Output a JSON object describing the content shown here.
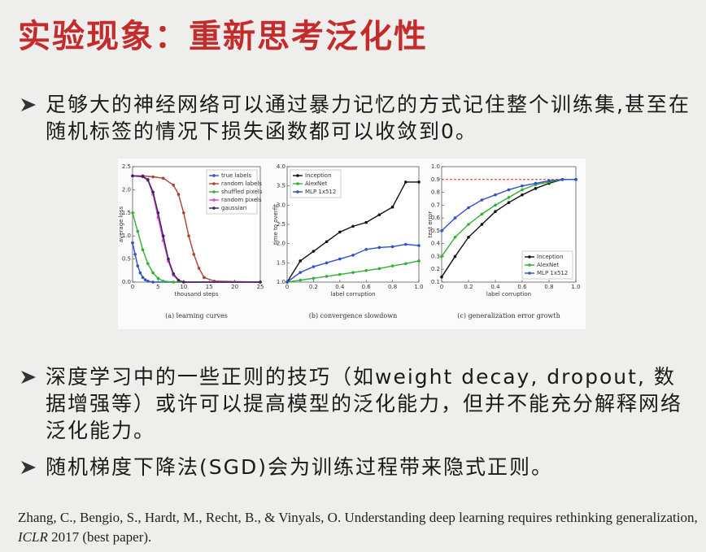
{
  "title": "实验现象：重新思考泛化性",
  "bullets": [
    "足够大的神经网络可以通过暴力记忆的方式记住整个训练集,甚至在随机标签的情况下损失函数都可以收敛到0。",
    "深度学习中的一些正则的技巧（如weight decay, dropout, 数据增强等）或许可以提高模型的泛化能力，但并不能充分解释网络泛化能力。",
    "随机梯度下降法(SGD)会为训练过程带来隐式正则。"
  ],
  "chart_data": [
    {
      "type": "line",
      "caption": "(a) learning curves",
      "x_label": "thousand steps",
      "y_label": "average loss",
      "xlim": [
        0,
        25
      ],
      "ylim": [
        0,
        2.5
      ],
      "xticks": [
        0,
        5,
        10,
        15,
        20,
        25
      ],
      "yticks": [
        {
          "value": 0,
          "label": "0.0"
        },
        0.5,
        {
          "value": 1,
          "label": "1.0"
        },
        1.5,
        {
          "value": 2,
          "label": "2.0"
        },
        2.5
      ],
      "legend": "upper right",
      "series": [
        {
          "name": "true labels",
          "color": "#3050c8",
          "x": [
            0,
            0.5,
            1,
            1.5,
            2,
            2.5,
            3,
            4,
            25
          ],
          "values": [
            0.85,
            0.6,
            0.35,
            0.2,
            0.1,
            0.05,
            0.02,
            0,
            0
          ]
        },
        {
          "name": "random labels",
          "color": "#b04030",
          "x": [
            0,
            2,
            4,
            6,
            8,
            9,
            10,
            11,
            12,
            13,
            14,
            16,
            25
          ],
          "values": [
            2.3,
            2.3,
            2.28,
            2.25,
            2.1,
            1.9,
            1.5,
            1.0,
            0.6,
            0.3,
            0.1,
            0.02,
            0
          ]
        },
        {
          "name": "shuffled pixels",
          "color": "#30b030",
          "x": [
            0,
            1,
            2,
            3,
            4,
            5,
            6,
            8,
            25
          ],
          "values": [
            1.5,
            1.1,
            0.7,
            0.4,
            0.2,
            0.08,
            0.02,
            0,
            0
          ]
        },
        {
          "name": "random pixels",
          "color": "#e040d0",
          "x": [
            0,
            2,
            3,
            4,
            5,
            6,
            7,
            8,
            9,
            10,
            25
          ],
          "values": [
            2.3,
            2.28,
            2.2,
            1.9,
            1.4,
            0.9,
            0.45,
            0.15,
            0.03,
            0,
            0
          ]
        },
        {
          "name": "gaussian",
          "color": "#402060",
          "x": [
            0,
            2,
            3,
            4,
            5,
            6,
            7,
            8,
            9,
            10,
            25
          ],
          "values": [
            2.3,
            2.29,
            2.22,
            1.95,
            1.5,
            1.0,
            0.5,
            0.18,
            0.04,
            0,
            0
          ]
        }
      ]
    },
    {
      "type": "line",
      "caption": "(b) convergence slowdown",
      "x_label": "label corruption",
      "y_label": "time to overfit",
      "xlim": [
        0,
        1
      ],
      "ylim": [
        1,
        4
      ],
      "xticks": [
        0,
        0.2,
        0.4,
        0.6,
        0.8,
        {
          "value": 1,
          "label": "1.0"
        }
      ],
      "yticks": [
        {
          "value": 1,
          "label": "1.0"
        },
        1.5,
        {
          "value": 2,
          "label": "2.0"
        },
        2.5,
        {
          "value": 3,
          "label": "3.0"
        },
        3.5,
        {
          "value": 4,
          "label": "4.0"
        }
      ],
      "legend": "upper left",
      "x": [
        0,
        0.1,
        0.2,
        0.3,
        0.4,
        0.5,
        0.6,
        0.7,
        0.8,
        0.9,
        1
      ],
      "series": [
        {
          "name": "Inception",
          "color": "#111111",
          "values": [
            1.0,
            1.55,
            1.8,
            2.05,
            2.3,
            2.45,
            2.55,
            2.75,
            2.95,
            3.6,
            3.6
          ]
        },
        {
          "name": "AlexNet",
          "color": "#30b030",
          "values": [
            1.0,
            1.05,
            1.1,
            1.15,
            1.2,
            1.25,
            1.3,
            1.35,
            1.42,
            1.48,
            1.55
          ]
        },
        {
          "name": "MLP 1x512",
          "color": "#3050c8",
          "values": [
            1.0,
            1.25,
            1.4,
            1.5,
            1.6,
            1.7,
            1.85,
            1.9,
            1.92,
            1.98,
            1.95
          ]
        }
      ]
    },
    {
      "type": "line",
      "caption": "(c) generalization error growth",
      "x_label": "label corruption",
      "y_label": "test error",
      "xlim": [
        0,
        1
      ],
      "ylim": [
        0.1,
        1
      ],
      "xticks": [
        0,
        0.2,
        0.4,
        0.6,
        0.8,
        {
          "value": 1,
          "label": "1.0"
        }
      ],
      "yticks": [
        0.1,
        0.2,
        0.3,
        0.4,
        0.5,
        0.6,
        0.7,
        0.8,
        0.9,
        {
          "value": 1,
          "label": "1.0"
        }
      ],
      "legend": "lower right",
      "hline": 0.9,
      "hline_color": "#d62728",
      "x": [
        0,
        0.1,
        0.2,
        0.3,
        0.4,
        0.5,
        0.6,
        0.7,
        0.8,
        0.9,
        1
      ],
      "series": [
        {
          "name": "Inception",
          "color": "#111111",
          "values": [
            0.14,
            0.3,
            0.45,
            0.55,
            0.65,
            0.72,
            0.78,
            0.83,
            0.87,
            0.9,
            0.9
          ]
        },
        {
          "name": "AlexNet",
          "color": "#30b030",
          "values": [
            0.3,
            0.45,
            0.55,
            0.63,
            0.7,
            0.76,
            0.82,
            0.86,
            0.88,
            0.9,
            0.9
          ]
        },
        {
          "name": "MLP 1x512",
          "color": "#3050c8",
          "values": [
            0.5,
            0.6,
            0.68,
            0.74,
            0.78,
            0.82,
            0.85,
            0.87,
            0.89,
            0.9,
            0.9
          ]
        }
      ]
    }
  ],
  "citation": {
    "text": "Zhang, C., Bengio, S., Hardt, M., Recht, B., & Vinyals, O. Understanding deep learning requires rethinking generalization, ",
    "venue": "ICLR",
    "rest": " 2017 (best paper)."
  }
}
